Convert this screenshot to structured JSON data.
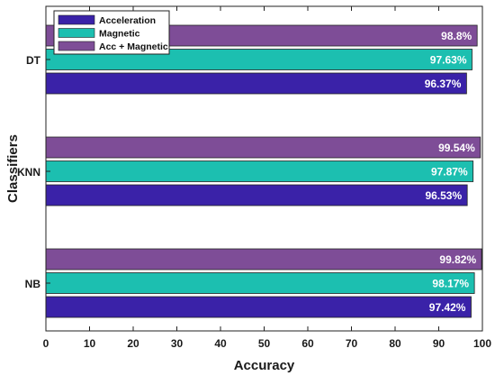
{
  "chart_data": {
    "type": "bar",
    "orientation": "horizontal",
    "categories": [
      "DT",
      "KNN",
      "NB"
    ],
    "series": [
      {
        "name": "Acceleration",
        "values": [
          96.37,
          96.53,
          97.42
        ],
        "labels": [
          "96.37%",
          "96.53%",
          "97.42%"
        ],
        "color": "#3a22a8"
      },
      {
        "name": "Magnetic",
        "values": [
          97.63,
          97.87,
          98.17
        ],
        "labels": [
          "97.63%",
          "97.87%",
          "98.17%"
        ],
        "color": "#1cbfb0"
      },
      {
        "name": "Acc + Magnetic",
        "values": [
          98.8,
          99.54,
          99.82
        ],
        "labels": [
          "98.8%",
          "99.54%",
          "99.82%"
        ],
        "color": "#7e4d97"
      }
    ],
    "xlabel": "Accuracy",
    "ylabel": "Classifiers",
    "xlim": [
      0,
      100
    ],
    "xticks": [
      "0",
      "10",
      "20",
      "30",
      "40",
      "50",
      "60",
      "70",
      "80",
      "90",
      "100"
    ],
    "grid": false,
    "legend_position": "top-left"
  }
}
